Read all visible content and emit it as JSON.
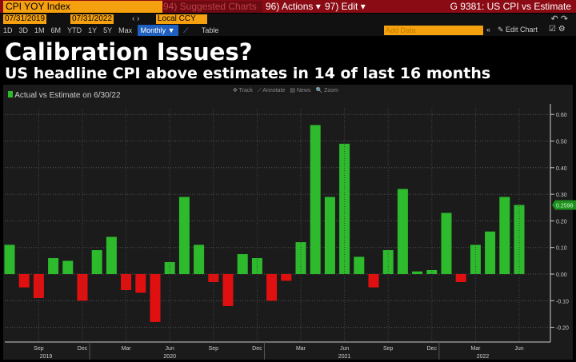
{
  "header": {
    "security": "CPI YOY Index",
    "suggested": "94) Suggested Charts",
    "actions": "96) Actions ▾",
    "edit": "97) Edit ▾",
    "title": "G 9381: US CPI vs Estimate"
  },
  "dates": {
    "start": "07/31/2019",
    "end": "07/31/2022",
    "currency": "Local CCY"
  },
  "periods": [
    "1D",
    "3D",
    "1M",
    "6M",
    "YTD",
    "1Y",
    "5Y",
    "Max"
  ],
  "frequency": "Monthly ▼",
  "table_label": "Table",
  "add_data_placeholder": "Add Data",
  "edit_chart": "✎ Edit Chart",
  "headline": "Calibration Issues?",
  "subheadline": "US headline CPI above estimates in 14 of last 16 months",
  "chart_tools": [
    "✥ Track",
    "⟋ Annotate",
    "▤ News",
    "🔍 Zoom"
  ],
  "colors": {
    "positive": "#2dbb2d",
    "negative": "#e01010",
    "accent": "#f5a10f",
    "header": "#8b0b14"
  },
  "chart_data": {
    "type": "bar",
    "title": "",
    "legend": "Actual vs Estimate on 6/30/22",
    "legend_position": "top-left",
    "categories": [
      "Jul 2019",
      "Aug 2019",
      "Sep 2019",
      "Oct 2019",
      "Nov 2019",
      "Dec 2019",
      "Jan 2020",
      "Feb 2020",
      "Mar 2020",
      "Apr 2020",
      "May 2020",
      "Jun 2020",
      "Jul 2020",
      "Aug 2020",
      "Sep 2020",
      "Oct 2020",
      "Nov 2020",
      "Dec 2020",
      "Jan 2021",
      "Feb 2021",
      "Mar 2021",
      "Apr 2021",
      "May 2021",
      "Jun 2021",
      "Jul 2021",
      "Aug 2021",
      "Sep 2021",
      "Oct 2021",
      "Nov 2021",
      "Dec 2021",
      "Jan 2022",
      "Feb 2022",
      "Mar 2022",
      "Apr 2022",
      "May 2022",
      "Jun 2022"
    ],
    "values": [
      0.11,
      -0.05,
      -0.09,
      0.06,
      0.05,
      -0.1,
      0.09,
      0.14,
      -0.06,
      -0.07,
      -0.18,
      0.045,
      0.29,
      0.11,
      -0.03,
      -0.12,
      0.075,
      0.06,
      -0.1,
      -0.025,
      0.12,
      0.56,
      0.29,
      0.49,
      0.065,
      -0.05,
      0.09,
      0.32,
      0.01,
      0.015,
      0.23,
      -0.03,
      0.11,
      0.16,
      0.29,
      0.2598
    ],
    "last_value_label": "0.2598",
    "ylim": [
      -0.25,
      0.65
    ],
    "yticks": [
      "0.60",
      "0.50",
      "0.40",
      "0.30",
      "0.20",
      "0.10",
      "0.00",
      "-0.10",
      "-0.20"
    ],
    "xticks": [
      "Sep",
      "Dec",
      "Mar",
      "Jun",
      "Sep",
      "Dec",
      "Mar",
      "Jun",
      "Sep",
      "Dec",
      "Mar",
      "Jun"
    ],
    "years": [
      "2019",
      "2020",
      "2021",
      "2022"
    ],
    "grid": true,
    "y_axis_side": "right"
  }
}
